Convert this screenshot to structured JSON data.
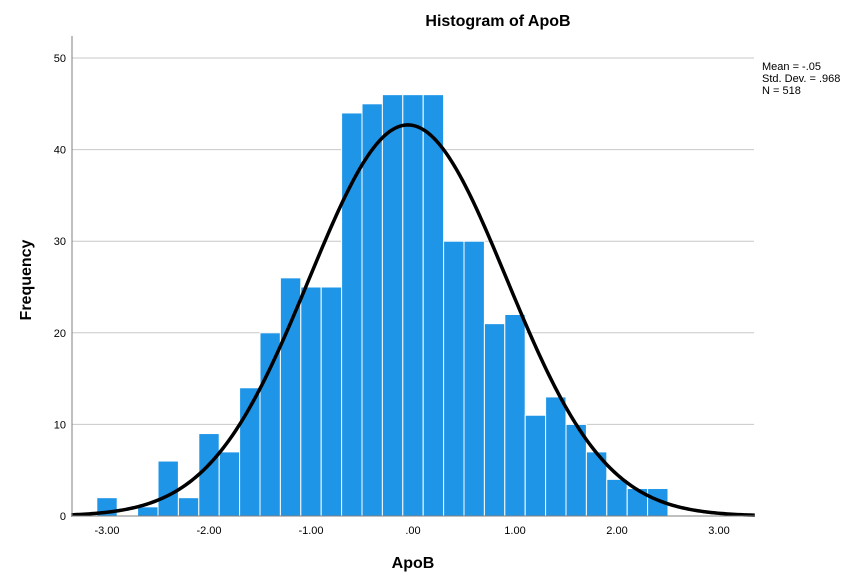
{
  "chart_data": {
    "type": "bar",
    "title": "Histogram of ApoB",
    "xlabel": "ApoB",
    "ylabel": "Frequency",
    "xlim": [
      -3.35,
      3.35
    ],
    "ylim": [
      0,
      50
    ],
    "x_ticks": [
      -3.0,
      -2.0,
      -1.0,
      0.0,
      1.0,
      2.0,
      3.0
    ],
    "x_tick_labels": [
      "-3.00",
      "-2.00",
      "-1.00",
      ".00",
      "1.00",
      "2.00",
      "3.00"
    ],
    "y_ticks": [
      0,
      10,
      20,
      30,
      40,
      50
    ],
    "y_tick_labels": [
      "0",
      "10",
      "20",
      "30",
      "40",
      "50"
    ],
    "grid": true,
    "bin_width": 0.2,
    "bin_starts": [
      -3.1,
      -2.9,
      -2.7,
      -2.5,
      -2.3,
      -2.1,
      -1.9,
      -1.7,
      -1.5,
      -1.3,
      -1.1,
      -0.9,
      -0.7,
      -0.5,
      -0.3,
      -0.1,
      0.1,
      0.3,
      0.5,
      0.7,
      0.9,
      1.1,
      1.3,
      1.5,
      1.7,
      1.9,
      2.1,
      2.3
    ],
    "values": [
      2,
      0,
      1,
      6,
      2,
      9,
      7,
      14,
      20,
      26,
      25,
      25,
      44,
      45,
      46,
      46,
      46,
      30,
      30,
      21,
      22,
      11,
      13,
      10,
      7,
      4,
      3,
      3
    ],
    "bar_color": "#1f95e8",
    "curve_color": "#000000",
    "normal_curve": {
      "mean": -0.05,
      "std_dev": 0.968,
      "n": 518
    },
    "stats_text": [
      "Mean = -.05",
      "Std. Dev. = .968",
      "N = 518"
    ],
    "legend_placement": "top-right"
  }
}
